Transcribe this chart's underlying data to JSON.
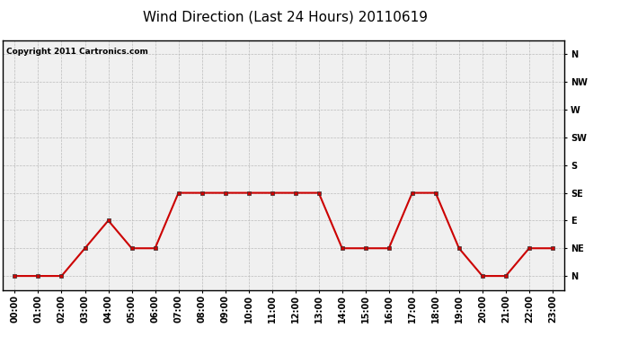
{
  "title": "Wind Direction (Last 24 Hours) 20110619",
  "copyright": "Copyright 2011 Cartronics.com",
  "hours": [
    0,
    1,
    2,
    3,
    4,
    5,
    6,
    7,
    8,
    9,
    10,
    11,
    12,
    13,
    14,
    15,
    16,
    17,
    18,
    19,
    20,
    21,
    22,
    23
  ],
  "x_labels": [
    "00:00",
    "01:00",
    "02:00",
    "03:00",
    "04:00",
    "05:00",
    "06:00",
    "07:00",
    "08:00",
    "09:00",
    "10:00",
    "11:00",
    "12:00",
    "13:00",
    "14:00",
    "15:00",
    "16:00",
    "17:00",
    "18:00",
    "19:00",
    "20:00",
    "21:00",
    "22:00",
    "23:00"
  ],
  "wind_values": [
    0,
    0,
    0,
    1,
    2,
    1,
    1,
    3,
    3,
    3,
    3,
    3,
    3,
    3,
    1,
    1,
    1,
    3,
    3,
    1,
    0,
    0,
    1,
    1
  ],
  "y_labels": [
    "N",
    "NE",
    "E",
    "SE",
    "S",
    "SW",
    "W",
    "NW",
    "N"
  ],
  "y_ticks": [
    0,
    1,
    2,
    3,
    4,
    5,
    6,
    7,
    8
  ],
  "ylim": [
    -0.5,
    8.5
  ],
  "xlim": [
    -0.5,
    23.5
  ],
  "line_color": "#cc0000",
  "marker": "s",
  "marker_size": 3,
  "bg_color": "#ffffff",
  "plot_bg_color": "#f0f0f0",
  "grid_color": "#bbbbbb",
  "title_fontsize": 11,
  "tick_fontsize": 7,
  "copyright_fontsize": 6.5
}
